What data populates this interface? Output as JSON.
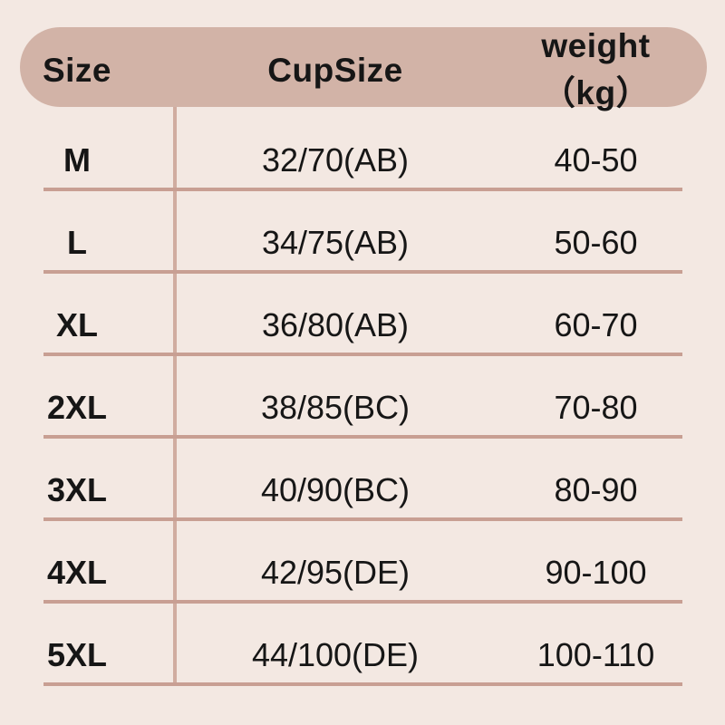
{
  "colors": {
    "bg": "#f3e8e2",
    "header-bg": "#d2b3a7",
    "line": "#c89f93",
    "vline": "#d0aca0",
    "text": "#161616"
  },
  "table": {
    "header": {
      "size": "Size",
      "cup": "CupSize",
      "weight": "weight（kg）"
    },
    "rows": [
      {
        "size": "M",
        "cup": "32/70(AB)",
        "weight": "40-50"
      },
      {
        "size": "L",
        "cup": "34/75(AB)",
        "weight": "50-60"
      },
      {
        "size": "XL",
        "cup": "36/80(AB)",
        "weight": "60-70"
      },
      {
        "size": "2XL",
        "cup": "38/85(BC)",
        "weight": "70-80"
      },
      {
        "size": "3XL",
        "cup": "40/90(BC)",
        "weight": "80-90"
      },
      {
        "size": "4XL",
        "cup": "42/95(DE)",
        "weight": "90-100"
      },
      {
        "size": "5XL",
        "cup": "44/100(DE)",
        "weight": "100-110"
      }
    ]
  },
  "chart_data": {
    "type": "table",
    "title": "",
    "columns": [
      "Size",
      "CupSize",
      "weight（kg）"
    ],
    "rows": [
      [
        "M",
        "32/70(AB)",
        "40-50"
      ],
      [
        "L",
        "34/75(AB)",
        "50-60"
      ],
      [
        "XL",
        "36/80(AB)",
        "60-70"
      ],
      [
        "2XL",
        "38/85(BC)",
        "70-80"
      ],
      [
        "3XL",
        "40/90(BC)",
        "80-90"
      ],
      [
        "4XL",
        "42/95(DE)",
        "90-100"
      ],
      [
        "5XL",
        "44/100(DE)",
        "100-110"
      ]
    ],
    "layout": {
      "grid": "horizontal row dividers + single vertical divider after first column",
      "header_style": "rounded pill band"
    }
  }
}
